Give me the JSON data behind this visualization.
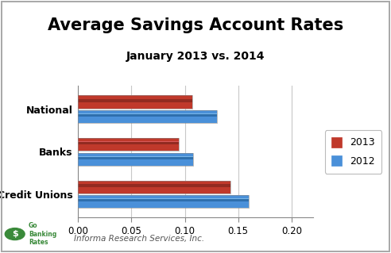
{
  "title": "Average Savings Account Rates",
  "subtitle": "January 2013 vs. 2014",
  "categories": [
    "Credit Unions",
    "Banks",
    "National"
  ],
  "values_2013": [
    0.143,
    0.094,
    0.107
  ],
  "values_2012": [
    0.16,
    0.108,
    0.13
  ],
  "color_2013_top": "#D95B5B",
  "color_2013_mid": "#C0392B",
  "color_2013_bot": "#922B21",
  "color_2012_top": "#7BB8E8",
  "color_2012_mid": "#4A90D9",
  "color_2012_bot": "#2E6FAD",
  "xlim": [
    0.0,
    0.22
  ],
  "xticks": [
    0.0,
    0.05,
    0.1,
    0.15,
    0.2
  ],
  "xticklabels": [
    "0.00",
    "0.05",
    "0.10",
    "0.15",
    "0.20"
  ],
  "legend_2013": "2013",
  "legend_2012": "2012",
  "source_text": "Informa Research Services, Inc.",
  "background_color": "#FFFFFF",
  "bar_height": 0.3,
  "bar_gap": 0.05,
  "title_fontsize": 15,
  "subtitle_fontsize": 10,
  "grid_color": "#C8C8C8"
}
